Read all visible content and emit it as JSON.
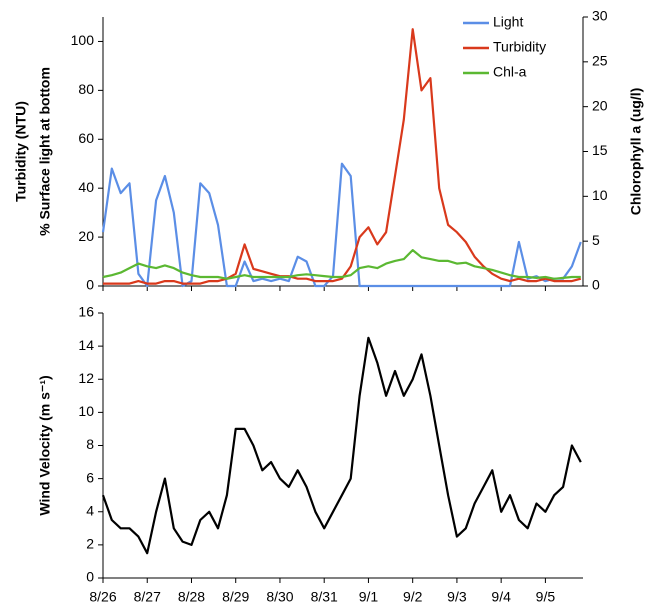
{
  "chart_data": [
    {
      "type": "line",
      "ylabels": [
        "Turbidity (NTU)",
        "% Surface light at bottom"
      ],
      "y2label": "Chlorophyll a (ug/l)",
      "x": [
        0,
        0.2,
        0.4,
        0.6,
        0.8,
        1,
        1.2,
        1.4,
        1.6,
        1.8,
        2,
        2.2,
        2.4,
        2.6,
        2.8,
        3,
        3.2,
        3.4,
        3.6,
        3.8,
        4,
        4.2,
        4.4,
        4.6,
        4.8,
        5,
        5.2,
        5.4,
        5.6,
        5.8,
        6,
        6.2,
        6.4,
        6.6,
        6.8,
        7,
        7.2,
        7.4,
        7.6,
        7.8,
        8,
        8.2,
        8.4,
        8.6,
        8.8,
        9,
        9.2,
        9.4,
        9.6,
        9.8,
        10,
        10.2,
        10.4,
        10.6,
        10.8
      ],
      "xlim": [
        0,
        10.85
      ],
      "xticks": [
        0,
        1,
        2,
        3,
        4,
        5,
        6,
        7,
        8,
        9,
        10
      ],
      "ylim": [
        0,
        110
      ],
      "yticks": [
        0,
        20,
        40,
        60,
        80,
        100
      ],
      "y2lim": [
        0,
        30
      ],
      "y2ticks": [
        0,
        5,
        10,
        15,
        20,
        25,
        30
      ],
      "legend": "upper right",
      "series": [
        {
          "name": "Light",
          "color": "#5b8ee6",
          "values": [
            22,
            48,
            38,
            42,
            5,
            0,
            35,
            45,
            30,
            0,
            2,
            42,
            38,
            25,
            0,
            0,
            10,
            2,
            3,
            2,
            3,
            2,
            12,
            10,
            0,
            0,
            4,
            50,
            45,
            0,
            0,
            0,
            0,
            0,
            0,
            0,
            0,
            0,
            0,
            0,
            0,
            0,
            0,
            0,
            0,
            0,
            0,
            18,
            3,
            4,
            2,
            3,
            3,
            8,
            18
          ]
        },
        {
          "name": "Turbidity",
          "color": "#d9391c",
          "values": [
            1,
            1,
            1,
            1,
            2,
            1,
            1,
            2,
            2,
            1,
            1,
            1,
            2,
            2,
            3,
            5,
            17,
            7,
            6,
            5,
            4,
            4,
            3,
            3,
            2,
            2,
            2,
            3,
            8,
            20,
            24,
            17,
            22,
            45,
            68,
            105,
            80,
            85,
            40,
            25,
            22,
            18,
            12,
            8,
            5,
            3,
            2,
            3,
            2,
            2,
            3,
            2,
            2,
            2,
            3
          ]
        },
        {
          "name": "Chl-a",
          "color": "#5bb832",
          "axis": "y2",
          "values": [
            1,
            1.2,
            1.5,
            2,
            2.5,
            2.2,
            2,
            2.3,
            2,
            1.5,
            1.2,
            1,
            1,
            1,
            0.8,
            1,
            1.2,
            1,
            1,
            1,
            1,
            1,
            1.2,
            1.3,
            1.2,
            1.1,
            1,
            1,
            1.2,
            2,
            2.2,
            2,
            2.5,
            2.8,
            3,
            4,
            3.2,
            3,
            2.8,
            2.8,
            2.5,
            2.6,
            2.2,
            2,
            1.8,
            1.5,
            1.2,
            1,
            1,
            0.9,
            1,
            0.8,
            0.9,
            1,
            1
          ]
        }
      ]
    },
    {
      "type": "line",
      "ylabel": "Wind Velocity (m s⁻¹)",
      "x": [
        0,
        0.2,
        0.4,
        0.6,
        0.8,
        1,
        1.2,
        1.4,
        1.6,
        1.8,
        2,
        2.2,
        2.4,
        2.6,
        2.8,
        3,
        3.2,
        3.4,
        3.6,
        3.8,
        4,
        4.2,
        4.4,
        4.6,
        4.8,
        5,
        5.2,
        5.4,
        5.6,
        5.8,
        6,
        6.2,
        6.4,
        6.6,
        6.8,
        7,
        7.2,
        7.4,
        7.6,
        7.8,
        8,
        8.2,
        8.4,
        8.6,
        8.8,
        9,
        9.2,
        9.4,
        9.6,
        9.8,
        10,
        10.2,
        10.4,
        10.6,
        10.8
      ],
      "xlim": [
        0,
        10.85
      ],
      "xticks": [
        {
          "value": 0,
          "label": "8/26"
        },
        {
          "value": 1,
          "label": "8/27"
        },
        {
          "value": 2,
          "label": "8/28"
        },
        {
          "value": 3,
          "label": "8/29"
        },
        {
          "value": 4,
          "label": "8/30"
        },
        {
          "value": 5,
          "label": "8/31"
        },
        {
          "value": 6,
          "label": "9/1"
        },
        {
          "value": 7,
          "label": "9/2"
        },
        {
          "value": 8,
          "label": "9/3"
        },
        {
          "value": 9,
          "label": "9/4"
        },
        {
          "value": 10,
          "label": "9/5"
        }
      ],
      "ylim": [
        0,
        16
      ],
      "yticks": [
        0,
        2,
        4,
        6,
        8,
        10,
        12,
        14,
        16
      ],
      "series": [
        {
          "color": "#000000",
          "values": [
            5,
            3.5,
            3,
            3,
            2.5,
            1.5,
            4,
            6,
            3,
            2.2,
            2,
            3.5,
            4,
            3,
            5,
            9,
            9,
            8,
            6.5,
            7,
            6,
            5.5,
            6.5,
            5.5,
            4,
            3,
            4,
            5,
            6,
            11,
            14.5,
            13,
            11,
            12.5,
            11,
            12,
            13.5,
            11,
            8,
            5,
            2.5,
            3,
            4.5,
            5.5,
            6.5,
            4,
            5,
            3.5,
            3,
            4.5,
            4,
            5,
            5.5,
            8,
            7
          ]
        }
      ]
    }
  ]
}
